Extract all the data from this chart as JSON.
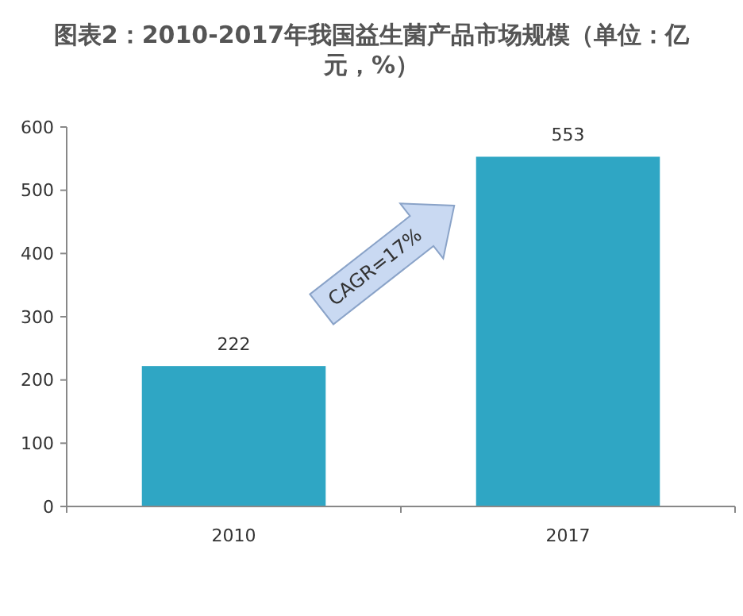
{
  "chart_data": {
    "type": "bar",
    "title": "图表2：2010-2017年我国益生菌产品市场规模（单位：亿元，%）",
    "categories": [
      "2010",
      "2017"
    ],
    "values": [
      222,
      553
    ],
    "color": "#2fa6c4",
    "ylim": [
      0,
      600
    ],
    "yticks": [
      0,
      100,
      200,
      300,
      400,
      500,
      600
    ],
    "grid": false,
    "data_labels": true,
    "annotations": [
      "CAGR=17%"
    ]
  }
}
